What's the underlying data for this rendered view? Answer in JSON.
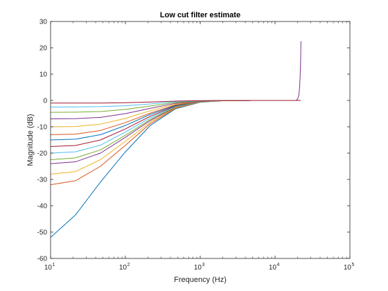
{
  "chart_data": {
    "type": "line",
    "title": "Low cut filter estimate",
    "xlabel": "Frequency (Hz)",
    "ylabel": "Magnitude (dB)",
    "xscale": "log",
    "xlim": [
      10,
      100000
    ],
    "ylim": [
      -60,
      30
    ],
    "grid": false,
    "x_ticks": [
      {
        "value": 10,
        "base": "10",
        "exp": "1"
      },
      {
        "value": 100,
        "base": "10",
        "exp": "2"
      },
      {
        "value": 1000,
        "base": "10",
        "exp": "3"
      },
      {
        "value": 10000,
        "base": "10",
        "exp": "4"
      },
      {
        "value": 100000,
        "base": "10",
        "exp": "5"
      }
    ],
    "y_ticks": [
      {
        "value": -60,
        "label": "-60"
      },
      {
        "value": -50,
        "label": "-50"
      },
      {
        "value": -40,
        "label": "-40"
      },
      {
        "value": -30,
        "label": "-30"
      },
      {
        "value": -20,
        "label": "-20"
      },
      {
        "value": -10,
        "label": "-10"
      },
      {
        "value": 0,
        "label": "0"
      },
      {
        "value": 10,
        "label": "10"
      },
      {
        "value": 20,
        "label": "20"
      },
      {
        "value": 30,
        "label": "30"
      }
    ],
    "series": [
      {
        "color": "#0072BD",
        "points": [
          [
            10,
            -52
          ],
          [
            21.5,
            -43.5
          ],
          [
            46.4,
            -31
          ],
          [
            100,
            -19.5
          ],
          [
            215,
            -9.5
          ],
          [
            464,
            -3.2
          ],
          [
            1000,
            -0.7
          ],
          [
            2000,
            -0.1
          ],
          [
            5000,
            0
          ],
          [
            22000,
            0
          ]
        ]
      },
      {
        "color": "#D95319",
        "points": [
          [
            10,
            -32
          ],
          [
            21.5,
            -30.5
          ],
          [
            46.4,
            -25
          ],
          [
            100,
            -17
          ],
          [
            215,
            -8.8
          ],
          [
            464,
            -3
          ],
          [
            1000,
            -0.6
          ],
          [
            2000,
            -0.1
          ],
          [
            5000,
            0
          ],
          [
            22000,
            0
          ]
        ]
      },
      {
        "color": "#EDB120",
        "points": [
          [
            10,
            -28
          ],
          [
            21.5,
            -27
          ],
          [
            46.4,
            -22.5
          ],
          [
            100,
            -15.5
          ],
          [
            215,
            -8.2
          ],
          [
            464,
            -2.8
          ],
          [
            1000,
            -0.6
          ],
          [
            2000,
            -0.1
          ],
          [
            5000,
            0
          ],
          [
            22000,
            0
          ]
        ]
      },
      {
        "color": "#7E2F8E",
        "points": [
          [
            10,
            -24
          ],
          [
            21.5,
            -23.3
          ],
          [
            46.4,
            -20
          ],
          [
            100,
            -14
          ],
          [
            215,
            -7.6
          ],
          [
            464,
            -2.6
          ],
          [
            1000,
            -0.5
          ],
          [
            2000,
            -0.1
          ],
          [
            5000,
            0
          ],
          [
            22000,
            0
          ]
        ]
      },
      {
        "color": "#77AC30",
        "points": [
          [
            10,
            -22.5
          ],
          [
            21.5,
            -21.8
          ],
          [
            46.4,
            -18.8
          ],
          [
            100,
            -13.2
          ],
          [
            215,
            -7.2
          ],
          [
            464,
            -2.5
          ],
          [
            1000,
            -0.5
          ],
          [
            2000,
            -0.1
          ],
          [
            5000,
            0
          ],
          [
            22000,
            0
          ]
        ]
      },
      {
        "color": "#4DBEEE",
        "points": [
          [
            10,
            -20
          ],
          [
            21.5,
            -19.5
          ],
          [
            46.4,
            -17
          ],
          [
            100,
            -12
          ],
          [
            215,
            -6.6
          ],
          [
            464,
            -2.3
          ],
          [
            1000,
            -0.5
          ],
          [
            2000,
            -0.1
          ],
          [
            5000,
            0
          ],
          [
            22000,
            0
          ]
        ]
      },
      {
        "color": "#A2142F",
        "points": [
          [
            10,
            -17.5
          ],
          [
            21.5,
            -17.1
          ],
          [
            46.4,
            -15
          ],
          [
            100,
            -10.8
          ],
          [
            215,
            -6
          ],
          [
            464,
            -2.1
          ],
          [
            1000,
            -0.4
          ],
          [
            2000,
            -0.1
          ],
          [
            5000,
            0
          ],
          [
            22000,
            0
          ]
        ]
      },
      {
        "color": "#0072BD",
        "points": [
          [
            10,
            -15
          ],
          [
            21.5,
            -14.7
          ],
          [
            46.4,
            -13
          ],
          [
            100,
            -9.5
          ],
          [
            215,
            -5.3
          ],
          [
            464,
            -1.9
          ],
          [
            1000,
            -0.4
          ],
          [
            2000,
            -0.1
          ],
          [
            5000,
            0
          ],
          [
            22000,
            0
          ]
        ]
      },
      {
        "color": "#D95319",
        "points": [
          [
            10,
            -13
          ],
          [
            21.5,
            -12.8
          ],
          [
            46.4,
            -11.4
          ],
          [
            100,
            -8.4
          ],
          [
            215,
            -4.8
          ],
          [
            464,
            -1.7
          ],
          [
            1000,
            -0.4
          ],
          [
            2000,
            -0.1
          ],
          [
            5000,
            0
          ],
          [
            22000,
            0
          ]
        ]
      },
      {
        "color": "#EDB120",
        "points": [
          [
            10,
            -10
          ],
          [
            21.5,
            -9.9
          ],
          [
            46.4,
            -9
          ],
          [
            100,
            -6.8
          ],
          [
            215,
            -3.9
          ],
          [
            464,
            -1.4
          ],
          [
            1000,
            -0.3
          ],
          [
            2000,
            -0.1
          ],
          [
            5000,
            0
          ],
          [
            22000,
            0
          ]
        ]
      },
      {
        "color": "#7E2F8E",
        "points": [
          [
            10,
            -7
          ],
          [
            21.5,
            -6.9
          ],
          [
            46.4,
            -6.4
          ],
          [
            100,
            -5
          ],
          [
            215,
            -3
          ],
          [
            464,
            -1.1
          ],
          [
            1000,
            -0.25
          ],
          [
            2000,
            -0.05
          ],
          [
            5000,
            0
          ],
          [
            22000,
            0
          ]
        ]
      },
      {
        "color": "#77AC30",
        "points": [
          [
            10,
            -4.5
          ],
          [
            21.5,
            -4.45
          ],
          [
            46.4,
            -4.2
          ],
          [
            100,
            -3.4
          ],
          [
            215,
            -2.1
          ],
          [
            464,
            -0.8
          ],
          [
            1000,
            -0.2
          ],
          [
            2000,
            -0.05
          ],
          [
            5000,
            0
          ],
          [
            22000,
            0
          ]
        ]
      },
      {
        "color": "#4DBEEE",
        "points": [
          [
            10,
            -2.5
          ],
          [
            21.5,
            -2.48
          ],
          [
            46.4,
            -2.35
          ],
          [
            100,
            -2
          ],
          [
            215,
            -1.3
          ],
          [
            464,
            -0.5
          ],
          [
            1000,
            -0.12
          ],
          [
            2000,
            0
          ],
          [
            5000,
            0
          ],
          [
            22000,
            0
          ]
        ]
      },
      {
        "color": "#A2142F",
        "points": [
          [
            10,
            -1
          ],
          [
            21.5,
            -1
          ],
          [
            46.4,
            -0.98
          ],
          [
            100,
            -0.85
          ],
          [
            215,
            -0.6
          ],
          [
            464,
            -0.25
          ],
          [
            1000,
            -0.06
          ],
          [
            2000,
            0
          ],
          [
            5000,
            0
          ],
          [
            22000,
            0
          ]
        ]
      },
      {
        "color": "#7E2F8E",
        "points": [
          [
            19000,
            0
          ],
          [
            20000,
            0.5
          ],
          [
            20800,
            2
          ],
          [
            21300,
            5
          ],
          [
            21700,
            10
          ],
          [
            22000,
            16
          ],
          [
            22100,
            20
          ],
          [
            22200,
            22.5
          ]
        ]
      }
    ]
  }
}
